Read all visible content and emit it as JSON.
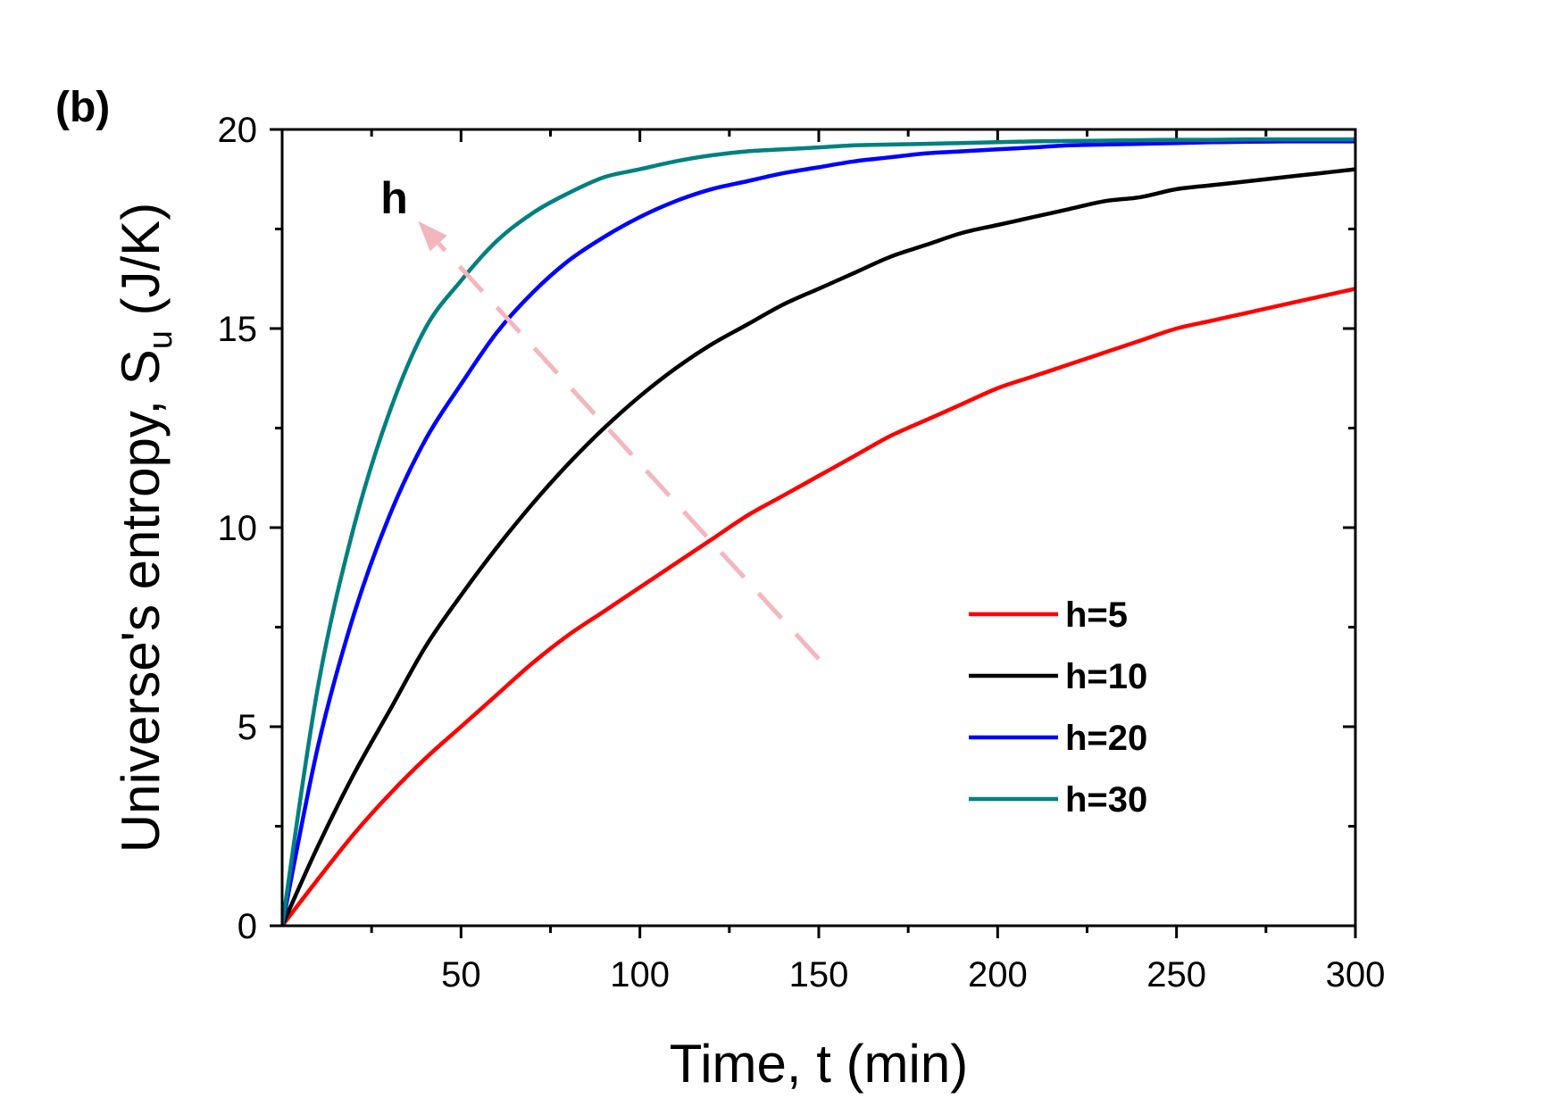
{
  "chart_data": {
    "type": "line",
    "panel_label": "(b)",
    "xlabel": "Time, t (min)",
    "ylabel_main": "Universe's entropy, S",
    "ylabel_sub": "u",
    "ylabel_unit": " (J/K)",
    "xlim": [
      0,
      300
    ],
    "ylim": [
      0,
      20
    ],
    "x_ticks": [
      50,
      100,
      150,
      200,
      250,
      300
    ],
    "x_minor_ticks": [
      25,
      75,
      125,
      175,
      225,
      275
    ],
    "y_ticks": [
      0,
      5,
      10,
      15,
      20
    ],
    "y_minor_ticks": [
      2.5,
      7.5,
      12.5,
      17.5
    ],
    "grid": false,
    "legend_position": "lower-right",
    "x": [
      0,
      10,
      20,
      30,
      40,
      50,
      60,
      70,
      80,
      90,
      100,
      110,
      120,
      130,
      140,
      150,
      160,
      170,
      180,
      190,
      200,
      210,
      220,
      230,
      240,
      250,
      260,
      270,
      280,
      290,
      300
    ],
    "series": [
      {
        "name": "h=5",
        "color": "#ff0000",
        "values": [
          0,
          1.17,
          2.3,
          3.3,
          4.2,
          5.0,
          5.8,
          6.6,
          7.3,
          7.9,
          8.5,
          9.1,
          9.7,
          10.3,
          10.8,
          11.3,
          11.8,
          12.3,
          12.7,
          13.1,
          13.5,
          13.8,
          14.1,
          14.4,
          14.7,
          15.0,
          15.2,
          15.4,
          15.6,
          15.8,
          16.0
        ]
      },
      {
        "name": "h=10",
        "color": "#000000",
        "values": [
          0,
          2.0,
          3.8,
          5.4,
          7.0,
          8.3,
          9.5,
          10.6,
          11.6,
          12.5,
          13.3,
          14.0,
          14.6,
          15.1,
          15.6,
          16.0,
          16.4,
          16.8,
          17.1,
          17.4,
          17.6,
          17.8,
          18.0,
          18.2,
          18.3,
          18.5,
          18.6,
          18.7,
          18.8,
          18.9,
          19.0
        ]
      },
      {
        "name": "h=20",
        "color": "#0000ff",
        "values": [
          0,
          4.5,
          7.8,
          10.3,
          12.2,
          13.6,
          14.9,
          15.9,
          16.7,
          17.3,
          17.8,
          18.2,
          18.5,
          18.7,
          18.9,
          19.05,
          19.2,
          19.3,
          19.4,
          19.45,
          19.5,
          19.55,
          19.6,
          19.62,
          19.64,
          19.66,
          19.68,
          19.69,
          19.7,
          19.7,
          19.7
        ]
      },
      {
        "name": "h=30",
        "color": "#008080",
        "values": [
          0,
          6.0,
          10.0,
          12.9,
          15.0,
          16.2,
          17.2,
          17.9,
          18.4,
          18.8,
          19.0,
          19.2,
          19.35,
          19.45,
          19.5,
          19.55,
          19.6,
          19.62,
          19.64,
          19.66,
          19.68,
          19.7,
          19.71,
          19.72,
          19.73,
          19.74,
          19.74,
          19.75,
          19.75,
          19.75,
          19.75
        ]
      }
    ],
    "annotation": {
      "label": "h",
      "color": "#f4b6be",
      "from": [
        150,
        6.7
      ],
      "to": [
        38,
        17.7
      ],
      "label_at": [
        30,
        18.3
      ]
    }
  }
}
